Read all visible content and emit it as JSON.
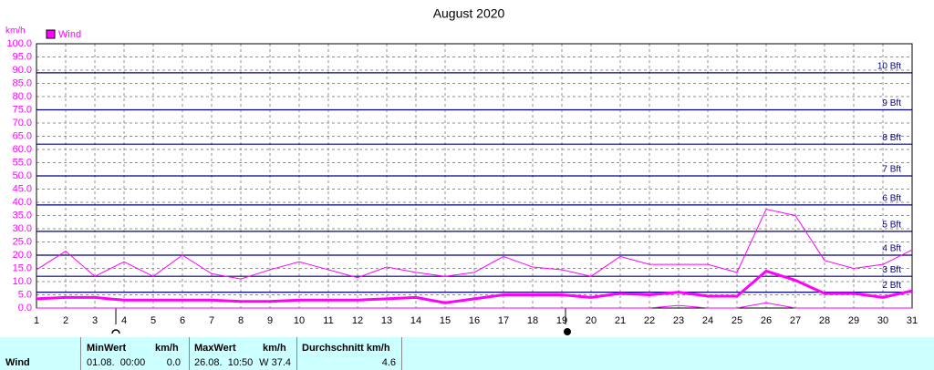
{
  "chart_data": {
    "type": "line",
    "title": "August 2020",
    "ylabel": "km/h",
    "x": [
      1,
      2,
      3,
      4,
      5,
      6,
      7,
      8,
      9,
      10,
      11,
      12,
      13,
      14,
      15,
      16,
      17,
      18,
      19,
      20,
      21,
      22,
      23,
      24,
      25,
      26,
      27,
      28,
      29,
      30,
      31
    ],
    "xlim": [
      1,
      31
    ],
    "xticks": [
      1,
      2,
      3,
      4,
      5,
      6,
      7,
      8,
      9,
      10,
      11,
      12,
      13,
      14,
      15,
      16,
      17,
      18,
      19,
      20,
      21,
      22,
      23,
      24,
      25,
      26,
      27,
      28,
      29,
      30,
      31
    ],
    "ylim": [
      0,
      100
    ],
    "yticks": [
      {
        "value": 0,
        "label": "0.0"
      },
      {
        "value": 5,
        "label": "5.0"
      },
      {
        "value": 10,
        "label": "10.0"
      },
      {
        "value": 15,
        "label": "15.0"
      },
      {
        "value": 20,
        "label": "20.0"
      },
      {
        "value": 25,
        "label": "25.0"
      },
      {
        "value": 30,
        "label": "30.0"
      },
      {
        "value": 35,
        "label": "35.0"
      },
      {
        "value": 40,
        "label": "40.0"
      },
      {
        "value": 45,
        "label": "45.0"
      },
      {
        "value": 50,
        "label": "50.0"
      },
      {
        "value": 55,
        "label": "55.0"
      },
      {
        "value": 60,
        "label": "60.0"
      },
      {
        "value": 65,
        "label": "65.0"
      },
      {
        "value": 70,
        "label": "70.0"
      },
      {
        "value": 75,
        "label": "75.0"
      },
      {
        "value": 80,
        "label": "80.0"
      },
      {
        "value": 85,
        "label": "85.0"
      },
      {
        "value": 90,
        "label": "90.0"
      },
      {
        "value": 95,
        "label": "95.0"
      },
      {
        "value": 100,
        "label": "100.0"
      }
    ],
    "grid": true,
    "beaufort_color": "#000080",
    "beaufort": [
      {
        "value": 6,
        "label": "2 Bft"
      },
      {
        "value": 12,
        "label": "3 Bft"
      },
      {
        "value": 20,
        "label": "4 Bft"
      },
      {
        "value": 29,
        "label": "5 Bft"
      },
      {
        "value": 39,
        "label": "6 Bft"
      },
      {
        "value": 50,
        "label": "7 Bft"
      },
      {
        "value": 62,
        "label": "8 Bft"
      },
      {
        "value": 75,
        "label": "9 Bft"
      },
      {
        "value": 89,
        "label": "10 Bft"
      }
    ],
    "series": [
      {
        "name": "Wind",
        "color": "#ff00ff",
        "values": [
          3.5,
          4,
          4,
          3,
          3,
          3,
          3,
          2.5,
          2.5,
          3,
          3,
          3,
          3.5,
          4,
          2,
          3.5,
          5,
          5,
          5,
          4,
          5.5,
          5,
          6,
          4.5,
          4.5,
          14,
          10.5,
          5.5,
          5.5,
          4,
          6.5
        ]
      },
      {
        "color": "#ff00ff",
        "values": [
          14.5,
          21.5,
          12,
          17.5,
          12,
          20,
          13,
          11,
          14.5,
          17.5,
          14.5,
          11.5,
          15.5,
          13.5,
          12,
          13.5,
          19.5,
          15.5,
          14.5,
          12,
          19.5,
          16.5,
          16.5,
          16.5,
          13.5,
          37.4,
          35,
          18,
          15,
          16.5,
          22
        ]
      },
      {
        "color": "#ff00ff",
        "values": [
          0,
          0,
          0,
          0,
          0,
          0,
          0,
          0,
          0,
          0,
          0,
          0,
          0,
          0,
          0,
          0,
          0,
          0,
          0,
          0,
          0,
          0,
          1,
          0,
          0,
          2,
          0,
          0,
          0,
          0,
          0
        ]
      }
    ]
  },
  "table": {
    "header": [
      "MinWert",
      "km/h",
      "MaxWert",
      "km/h",
      "Durchschnitt km/h"
    ],
    "rows": [
      [
        "Wind",
        "01.08.  00:00",
        "0.0",
        "26.08.  10:50",
        "W 37.4",
        "4.6"
      ]
    ]
  }
}
